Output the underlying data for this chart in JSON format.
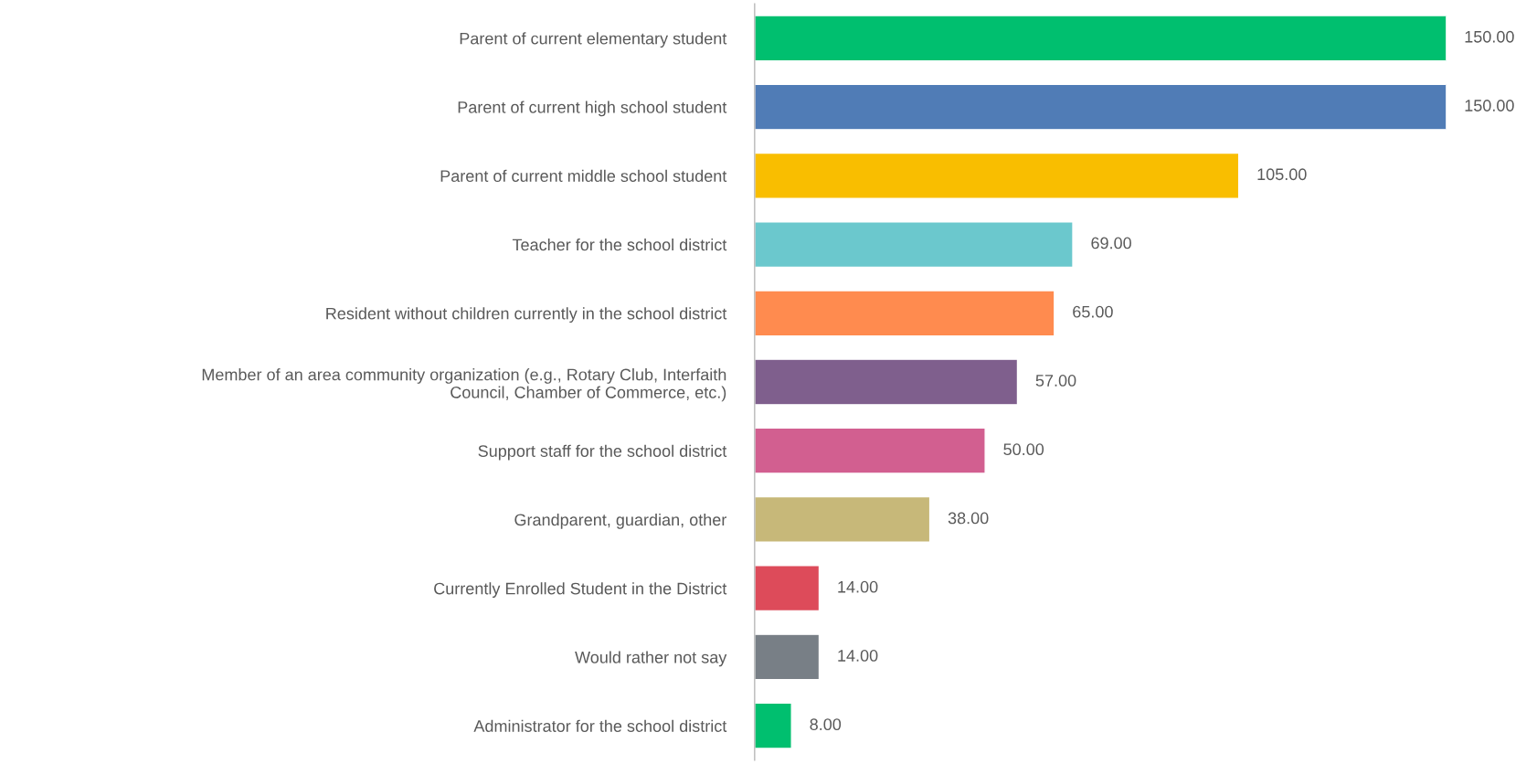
{
  "chart_data": {
    "type": "bar",
    "orientation": "horizontal",
    "categories": [
      "Parent of current elementary student",
      "Parent of current high school student",
      "Parent of current middle school student",
      "Teacher for the school district",
      "Resident without children currently in the school district",
      "Member of an area community organization (e.g., Rotary Club, Interfaith\nCouncil, Chamber of Commerce, etc.)",
      "Support staff for the school district",
      "Grandparent, guardian, other",
      "Currently Enrolled Student in the District",
      "Would rather not say",
      "Administrator for the school district"
    ],
    "values": [
      150,
      150,
      105,
      69,
      65,
      57,
      50,
      38,
      14,
      14,
      8
    ],
    "colors": [
      "#00bf6f",
      "#507cb6",
      "#f9be00",
      "#6bc8cd",
      "#ff8b4f",
      "#7f5f8d",
      "#d25f90",
      "#c7b879",
      "#dd4b5a",
      "#787f86",
      "#00bf6f"
    ],
    "value_labels": [
      "150.00",
      "150.00",
      "105.00",
      "69.00",
      "65.00",
      "57.00",
      "50.00",
      "38.00",
      "14.00",
      "14.00",
      "8.00"
    ],
    "xlim": [
      0,
      150
    ],
    "tick_labels": "y",
    "grid": false,
    "legend": false
  }
}
